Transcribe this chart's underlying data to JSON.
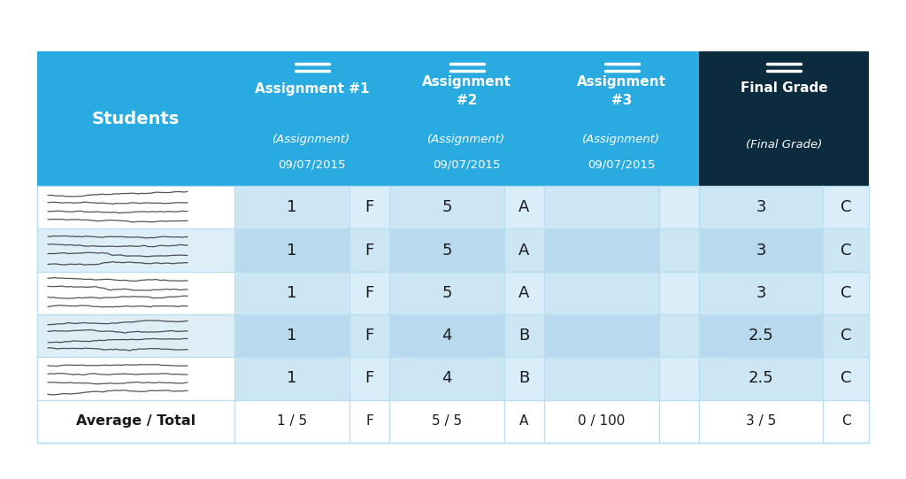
{
  "background_color": "#ffffff",
  "header_bg_light": "#29abe2",
  "header_bg_dark": "#0d2b3e",
  "header_text_color": "#ffffff",
  "body_text_color": "#1a1a1a",
  "cell_line_color": "#b8dff0",
  "icon_lines_color": "#ffffff",
  "col_bg_score": "#cce9f6",
  "col_bg_grade": "#dff2fb",
  "col_bg_white": "#ffffff",
  "col_bg_alt_score": "#b8dff0",
  "col_bg_alt_grade": "#cce9f6",
  "avg_row_bg": "#ffffff",
  "rows": [
    {
      "score1": "1",
      "grade1": "F",
      "score2": "5",
      "grade2": "A",
      "score3": "",
      "grade3": "",
      "final": "3",
      "final_grade": "C"
    },
    {
      "score1": "1",
      "grade1": "F",
      "score2": "5",
      "grade2": "A",
      "score3": "",
      "grade3": "",
      "final": "3",
      "final_grade": "C"
    },
    {
      "score1": "1",
      "grade1": "F",
      "score2": "5",
      "grade2": "A",
      "score3": "",
      "grade3": "",
      "final": "3",
      "final_grade": "C"
    },
    {
      "score1": "1",
      "grade1": "F",
      "score2": "4",
      "grade2": "B",
      "score3": "",
      "grade3": "",
      "final": "2.5",
      "final_grade": "C"
    },
    {
      "score1": "1",
      "grade1": "F",
      "score2": "4",
      "grade2": "B",
      "score3": "",
      "grade3": "",
      "final": "2.5",
      "final_grade": "C"
    }
  ],
  "avg_row": {
    "score1": "1 / 5",
    "grade1": "F",
    "score2": "5 / 5",
    "grade2": "A",
    "score3": "0 / 100",
    "grade3": "",
    "final": "3 / 5",
    "final_grade": "C"
  }
}
